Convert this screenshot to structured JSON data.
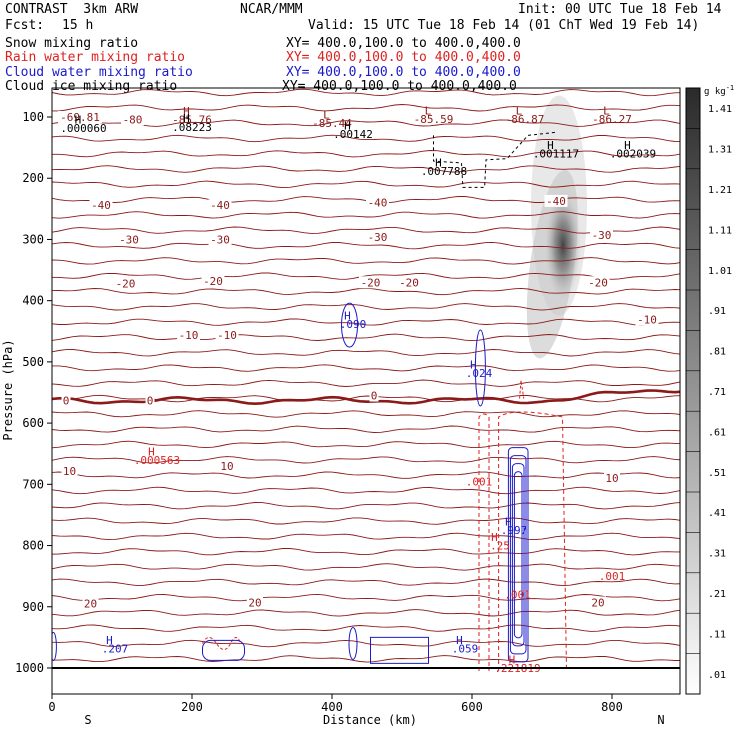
{
  "header": {
    "model": "CONTRAST  3km ARW",
    "org": "NCAR/MMM",
    "init": "Init: 00 UTC Tue 18 Feb 14",
    "fcst_label": "Fcst:",
    "fcst_value": "15 h",
    "valid": "Valid: 15 UTC Tue 18 Feb 14 (01 ChT Wed 19 Feb 14)",
    "fields": [
      {
        "name": "Snow mixing ratio",
        "xy": "XY= 400.0,100.0 to 400.0,400.0",
        "color": "#000000"
      },
      {
        "name": "Rain water mixing ratio",
        "xy": "XY= 400.0,100.0 to 400.0,400.0",
        "color": "#dd2222"
      },
      {
        "name": "Cloud water mixing ratio",
        "xy": "XY= 400.0,100.0 to 400.0,400.0",
        "color": "#1a1acc"
      },
      {
        "name": "Cloud ice mixing ratio",
        "xy": "XY= 400.0,100.0 to 400.0,400.0",
        "color": "#000000"
      }
    ]
  },
  "colors": {
    "temperature": "#8b1a1a",
    "rain": "#dd2222",
    "cloud_water": "#1a1acc",
    "snow": "#000000"
  },
  "chart_data": {
    "type": "heatmap",
    "title": "",
    "xlabel": "Distance (km)",
    "ylabel": "Pressure (hPa)",
    "xlim": [
      0,
      900
    ],
    "ylim": [
      1000,
      50
    ],
    "x_ticks": [
      0,
      200,
      400,
      600,
      800
    ],
    "y_ticks": [
      100,
      200,
      300,
      400,
      500,
      600,
      700,
      800,
      900,
      1000
    ],
    "x_end_labels": {
      "left": "S",
      "right": "N"
    },
    "colorbar": {
      "unit": "g kg",
      "unit_exp": "-1",
      "levels": [
        ".01",
        ".11",
        ".21",
        ".31",
        ".41",
        ".51",
        ".61",
        ".71",
        ".81",
        ".91",
        "1.01",
        "1.11",
        "1.21",
        "1.31",
        "1.41"
      ]
    },
    "shaded_maximum": {
      "x": 730,
      "p": 310
    },
    "temperature_contours": [
      {
        "value": -80,
        "p": 105
      },
      {
        "value": -40,
        "p": 245
      },
      {
        "value": -30,
        "p": 300
      },
      {
        "value": -20,
        "p": 372
      },
      {
        "value": -10,
        "p": 455
      },
      {
        "value": 0,
        "p": 563
      },
      {
        "value": 10,
        "p": 672
      },
      {
        "value": 20,
        "p": 893
      }
    ],
    "temperature_labels": [
      {
        "text": "-69.81",
        "x": 40,
        "p": 100
      },
      {
        "text": "-80",
        "x": 115,
        "p": 104
      },
      {
        "text": "-40",
        "x": 70,
        "p": 244
      },
      {
        "text": "-40",
        "x": 240,
        "p": 244
      },
      {
        "text": "-40",
        "x": 465,
        "p": 240
      },
      {
        "text": "-40",
        "x": 720,
        "p": 237
      },
      {
        "text": "-30",
        "x": 110,
        "p": 300
      },
      {
        "text": "-30",
        "x": 240,
        "p": 300
      },
      {
        "text": "-30",
        "x": 465,
        "p": 296
      },
      {
        "text": "-30",
        "x": 785,
        "p": 293
      },
      {
        "text": "-20",
        "x": 105,
        "p": 372
      },
      {
        "text": "-20",
        "x": 230,
        "p": 368
      },
      {
        "text": "-20",
        "x": 455,
        "p": 370
      },
      {
        "text": "-20",
        "x": 510,
        "p": 370
      },
      {
        "text": "-20",
        "x": 780,
        "p": 370
      },
      {
        "text": "-10",
        "x": 195,
        "p": 456
      },
      {
        "text": "-10",
        "x": 250,
        "p": 456
      },
      {
        "text": "-10",
        "x": 850,
        "p": 431
      },
      {
        "text": "0",
        "x": 20,
        "p": 563
      },
      {
        "text": "0",
        "x": 140,
        "p": 563
      },
      {
        "text": "0",
        "x": 460,
        "p": 555
      },
      {
        "text": "10",
        "x": 25,
        "p": 678
      },
      {
        "text": "10",
        "x": 250,
        "p": 670
      },
      {
        "text": "10",
        "x": 800,
        "p": 690
      },
      {
        "text": "20",
        "x": 55,
        "p": 895
      },
      {
        "text": "20",
        "x": 290,
        "p": 893
      },
      {
        "text": "20",
        "x": 780,
        "p": 893
      }
    ],
    "extrema": [
      {
        "type": "H",
        "value": ".000060",
        "x": 45,
        "p": 118,
        "field": "snow"
      },
      {
        "type": "H",
        "value": "-85.76",
        "x": 200,
        "p": 104,
        "field": "temperature"
      },
      {
        "type": "H",
        "value": ".08223",
        "x": 200,
        "p": 116,
        "field": "snow"
      },
      {
        "type": "L",
        "value": "-85.44",
        "x": 400,
        "p": 110,
        "field": "temperature"
      },
      {
        "type": "H",
        "value": ".00142",
        "x": 430,
        "p": 128,
        "field": "snow"
      },
      {
        "type": "L",
        "value": "-85.59",
        "x": 545,
        "p": 103,
        "field": "temperature"
      },
      {
        "type": "L",
        "value": "-86.87",
        "x": 675,
        "p": 103,
        "field": "temperature"
      },
      {
        "type": "L",
        "value": "-86.27",
        "x": 800,
        "p": 103,
        "field": "temperature"
      },
      {
        "type": "H",
        "value": ".001117",
        "x": 720,
        "p": 160,
        "field": "snow"
      },
      {
        "type": "H",
        "value": ".002039",
        "x": 830,
        "p": 160,
        "field": "snow"
      },
      {
        "type": "H",
        "value": ".007788",
        "x": 560,
        "p": 188,
        "field": "snow"
      },
      {
        "type": "H",
        "value": ".090",
        "x": 430,
        "p": 438,
        "field": "cloud_water"
      },
      {
        "type": "H",
        "value": ".024",
        "x": 610,
        "p": 518,
        "field": "cloud_water"
      },
      {
        "type": "H",
        "value": ".000563",
        "x": 150,
        "p": 660,
        "field": "rain"
      },
      {
        "type": "H",
        "value": ".997",
        "x": 660,
        "p": 775,
        "field": "cloud_water"
      },
      {
        "type": "H",
        "value": ".25",
        "x": 640,
        "p": 800,
        "field": "rain"
      },
      {
        "type": "H",
        "value": ".207",
        "x": 90,
        "p": 968,
        "field": "cloud_water"
      },
      {
        "type": "H",
        "value": ".059",
        "x": 590,
        "p": 968,
        "field": "cloud_water"
      },
      {
        "type": "H",
        "value": ".221819",
        "x": 665,
        "p": 1000,
        "field": "rain"
      }
    ],
    "rain_labels": [
      {
        "text": ".001",
        "x": 610,
        "p": 695
      },
      {
        "text": ".001",
        "x": 800,
        "p": 850
      },
      {
        "text": ".001",
        "x": 665,
        "p": 880
      }
    ],
    "cloud_water_core": {
      "x": [
        652,
        680
      ],
      "p": [
        640,
        990
      ]
    },
    "rain_shaft": {
      "x_left": 610,
      "x_right": 735,
      "p_top": 590,
      "p_bottom": 1005
    }
  }
}
